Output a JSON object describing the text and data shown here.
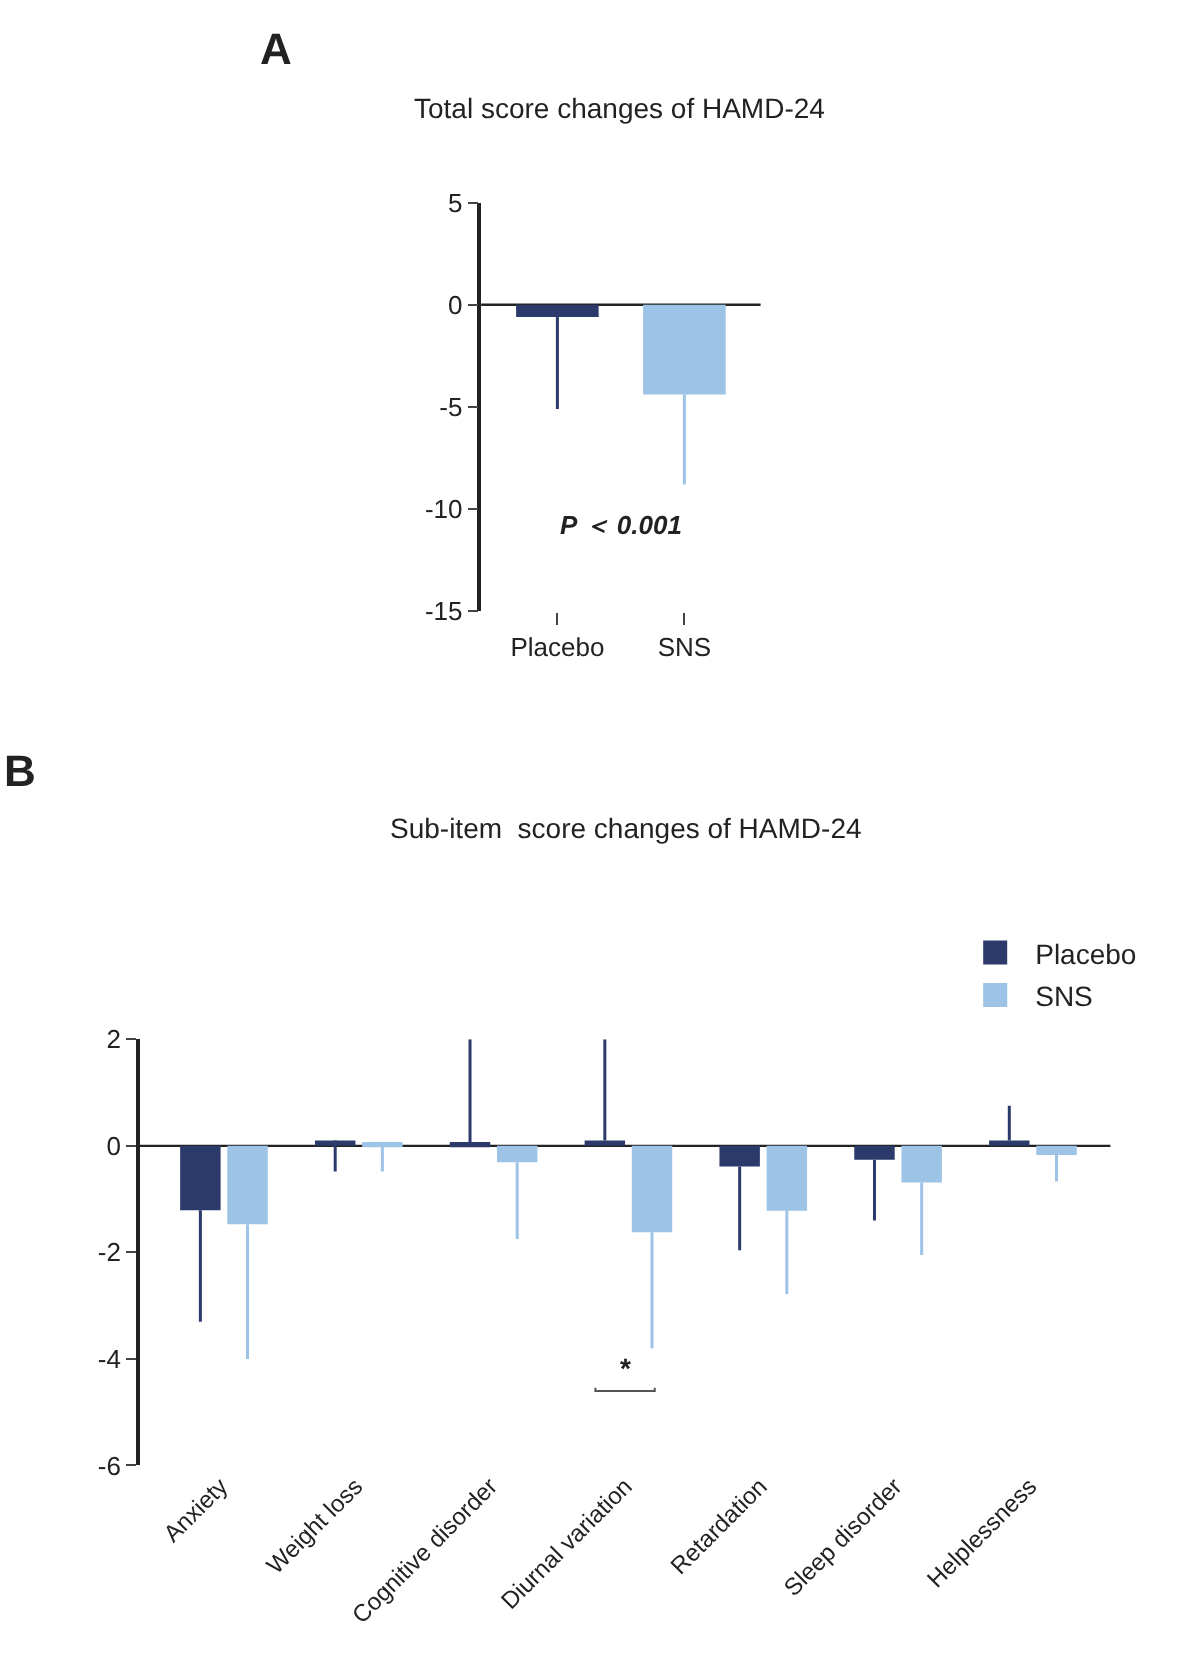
{
  "chart_data": [
    {
      "type": "bar",
      "title": "Total score changes of HAMD-24",
      "categories": [
        "Placebo",
        "SNS"
      ],
      "values": [
        -0.6,
        -4.4
      ],
      "colors": [
        "#2b3a6b",
        "#9dc3e6"
      ],
      "errors": [
        [
          -5.1,
          -0.6
        ],
        [
          -8.8,
          -4.4
        ]
      ],
      "ylim": [
        -15,
        5
      ],
      "yticks": [
        -15,
        -10,
        -5,
        0,
        5
      ],
      "annotations": [
        "A",
        "P ＜ 0.001"
      ]
    },
    {
      "type": "bar",
      "title": "Sub-item  score changes of HAMD-24",
      "categories": [
        "Anxiety",
        "Weight loss",
        "Cognitive disorder",
        "Diurnal variation",
        "Retardation",
        "Sleep disorder",
        "Helplessness"
      ],
      "series": [
        {
          "name": "Placebo",
          "color": "#2b3a6b",
          "values": [
            -1.21,
            0.1,
            0.07,
            0.1,
            -0.39,
            -0.26,
            0.1
          ],
          "errors": [
            [
              -3.3,
              -1.21
            ],
            [
              -0.48,
              0.1
            ],
            [
              0.07,
              2.0
            ],
            [
              0.1,
              2.0
            ],
            [
              -1.96,
              -0.39
            ],
            [
              -1.4,
              -0.26
            ],
            [
              0.1,
              0.75
            ]
          ]
        },
        {
          "name": "SNS",
          "color": "#9dc3e6",
          "values": [
            -1.47,
            0.07,
            -0.31,
            -1.62,
            -1.22,
            -0.69,
            -0.17
          ],
          "errors": [
            [
              -4.0,
              -1.47
            ],
            [
              -0.48,
              0.07
            ],
            [
              -1.75,
              -0.31
            ],
            [
              -3.8,
              -1.62
            ],
            [
              -2.78,
              -1.22
            ],
            [
              -2.05,
              -0.69
            ],
            [
              -0.67,
              -0.17
            ]
          ]
        }
      ],
      "ylim": [
        -6,
        2
      ],
      "yticks": [
        -6,
        -4,
        -2,
        0,
        2
      ],
      "legend": "top right",
      "annotations": [
        "B",
        "*"
      ]
    }
  ]
}
